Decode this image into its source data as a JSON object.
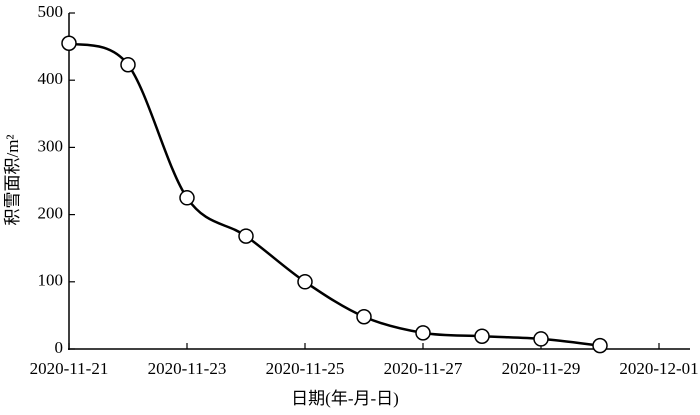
{
  "chart_data": {
    "type": "line",
    "x": [
      "2020-11-21",
      "2020-11-22",
      "2020-11-23",
      "2020-11-24",
      "2020-11-25",
      "2020-11-26",
      "2020-11-27",
      "2020-11-28",
      "2020-11-29",
      "2020-11-30"
    ],
    "series": [
      {
        "name": "积雪面积",
        "color": "#000000",
        "values": [
          455,
          423,
          225,
          168,
          100,
          48,
          24,
          19,
          15,
          5
        ]
      }
    ],
    "xlabel": "日期(年-月-日)",
    "ylabel": "积雪面积/m²",
    "xlim": [
      "2020-11-21",
      "2020-12-01"
    ],
    "xticks": [
      "2020-11-21",
      "2020-11-23",
      "2020-11-25",
      "2020-11-27",
      "2020-11-29",
      "2020-12-01"
    ],
    "ylim": [
      0,
      500
    ],
    "yticks": [
      0,
      100,
      200,
      300,
      400,
      500
    ],
    "grid": false,
    "smooth": true,
    "marker": "circle"
  }
}
